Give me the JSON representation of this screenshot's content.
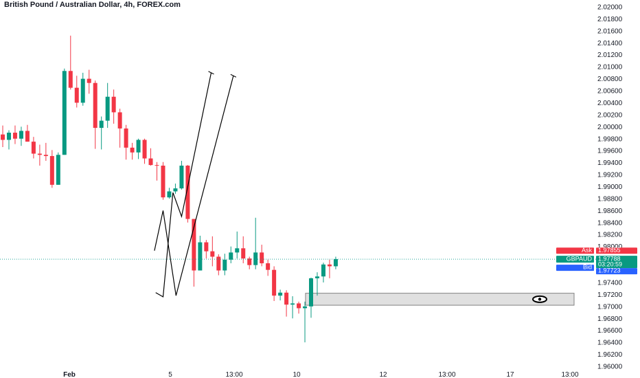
{
  "title": "British Pound / Australian Dollar, 4h, FOREX.com",
  "colors": {
    "up": "#089981",
    "down": "#f23645",
    "ask_bg": "#f23645",
    "bid_bg": "#2962ff",
    "price_bg": "#089981",
    "price_line": "#26a69a",
    "zone_fill": "#e0e0e0",
    "zone_stroke": "#808080",
    "drawing": "#000000",
    "axis_text": "#131722"
  },
  "price_labels": {
    "ask_tag": "Ask",
    "ask_value": "1.97855",
    "symbol_tag": "GBPAUD",
    "price_value": "1.97788",
    "countdown": "03:20:59",
    "bid_tag": "Bid",
    "bid_value": "1.97723"
  },
  "icons": {
    "zone_marker": "eye-icon"
  },
  "chart_data": {
    "type": "candlestick",
    "title": "British Pound / Australian Dollar, 4h, FOREX.com",
    "y_range": [
      1.96,
      2.02
    ],
    "y_ticks": [
      "2.02000",
      "2.01800",
      "2.01600",
      "2.01400",
      "2.01200",
      "2.01000",
      "2.00800",
      "2.00600",
      "2.00400",
      "2.00200",
      "2.00000",
      "1.99800",
      "1.99600",
      "1.99400",
      "1.99200",
      "1.99000",
      "1.98800",
      "1.98600",
      "1.98400",
      "1.98200",
      "1.98000",
      "1.97800",
      "1.97600",
      "1.97400",
      "1.97200",
      "1.97000",
      "1.96800",
      "1.96600",
      "1.96400",
      "1.96200",
      "1.96000"
    ],
    "x_labels": [
      "Feb",
      "5",
      "13:00",
      "10",
      "12",
      "13:00",
      "17",
      "13:00"
    ],
    "last_price": 1.97788,
    "ohlc": [
      [
        1.9987,
        2.0002,
        1.9966,
        1.9978
      ],
      [
        1.9978,
        1.9994,
        1.9962,
        1.999
      ],
      [
        1.999,
        2.0002,
        1.9971,
        1.998
      ],
      [
        1.998,
        2.0,
        1.9968,
        1.9993
      ],
      [
        1.9993,
        2.0003,
        1.9975,
        1.9975
      ],
      [
        1.9975,
        1.9983,
        1.9947,
        1.9955
      ],
      [
        1.9955,
        1.997,
        1.9935,
        1.9953
      ],
      [
        1.9953,
        1.9973,
        1.9943,
        1.9951
      ],
      [
        1.9951,
        1.9961,
        1.9898,
        1.9903
      ],
      [
        1.9903,
        1.9957,
        1.9903,
        1.9953
      ],
      [
        1.9953,
        2.0097,
        1.9953,
        2.0093
      ],
      [
        2.0093,
        2.0152,
        2.0062,
        2.0065
      ],
      [
        2.0065,
        2.0085,
        2.0032,
        2.004
      ],
      [
        2.004,
        2.009,
        2.0035,
        2.008
      ],
      [
        2.008,
        2.0095,
        2.0055,
        2.0073
      ],
      [
        2.0073,
        2.0077,
        1.9963,
        1.9998
      ],
      [
        1.9998,
        2.0017,
        1.9962,
        2.001
      ],
      [
        2.001,
        2.0073,
        1.9998,
        2.005
      ],
      [
        2.005,
        2.0062,
        2.0005,
        2.0024
      ],
      [
        2.0024,
        2.003,
        1.9965,
        1.9997
      ],
      [
        1.9997,
        2.0003,
        1.9945,
        1.9965
      ],
      [
        1.9965,
        1.9973,
        1.9945,
        1.9957
      ],
      [
        1.9957,
        1.998,
        1.9946,
        1.9978
      ],
      [
        1.9978,
        1.998,
        1.9938,
        1.9947
      ],
      [
        1.9947,
        1.9964,
        1.9935,
        1.9936
      ],
      [
        1.9936,
        1.9941,
        1.991,
        1.9935
      ],
      [
        1.9935,
        1.9941,
        1.9878,
        1.9882
      ],
      [
        1.9882,
        1.9898,
        1.988,
        1.9892
      ],
      [
        1.9892,
        1.9905,
        1.9888,
        1.9897
      ],
      [
        1.9897,
        1.9943,
        1.9895,
        1.9935
      ],
      [
        1.9935,
        1.9936,
        1.984,
        1.9846
      ],
      [
        1.9846,
        1.9846,
        1.9733,
        1.976
      ],
      [
        1.976,
        1.9818,
        1.976,
        1.9807
      ],
      [
        1.9807,
        1.9811,
        1.978,
        1.9792
      ],
      [
        1.9792,
        1.9817,
        1.9767,
        1.9783
      ],
      [
        1.9783,
        1.9787,
        1.9752,
        1.976
      ],
      [
        1.976,
        1.9788,
        1.9752,
        1.9778
      ],
      [
        1.9778,
        1.98,
        1.9772,
        1.979
      ],
      [
        1.979,
        1.9825,
        1.978,
        1.9797
      ],
      [
        1.9797,
        1.9817,
        1.9772,
        1.978
      ],
      [
        1.978,
        1.9783,
        1.9762,
        1.9769
      ],
      [
        1.9769,
        1.9848,
        1.9762,
        1.979
      ],
      [
        1.979,
        1.9803,
        1.9767,
        1.9772
      ],
      [
        1.9772,
        1.9778,
        1.9751,
        1.9761
      ],
      [
        1.9761,
        1.9767,
        1.9709,
        1.9718
      ],
      [
        1.9718,
        1.9728,
        1.971,
        1.9723
      ],
      [
        1.9723,
        1.9727,
        1.9683,
        1.9703
      ],
      [
        1.9703,
        1.9717,
        1.968,
        1.9705
      ],
      [
        1.9705,
        1.9708,
        1.9688,
        1.9697
      ],
      [
        1.9697,
        1.9708,
        1.964,
        1.97
      ],
      [
        1.97,
        1.9748,
        1.9681,
        1.9747
      ],
      [
        1.9747,
        1.9757,
        1.9718,
        1.975
      ],
      [
        1.975,
        1.9773,
        1.974,
        1.977
      ],
      [
        1.977,
        1.9778,
        1.9747,
        1.9767
      ],
      [
        1.9767,
        1.9783,
        1.9762,
        1.9779
      ]
    ],
    "demand_zone": {
      "low": 1.9702,
      "high": 1.9722
    },
    "projection_paths": [
      [
        [
          24.8,
          1.9723
        ],
        [
          26.0,
          1.9716
        ],
        [
          27.6,
          1.989
        ],
        [
          29.0,
          1.985
        ],
        [
          33.8,
          2.009
        ]
      ],
      [
        [
          24.6,
          1.9793
        ],
        [
          26.0,
          1.986
        ],
        [
          28.1,
          1.9718
        ],
        [
          37.4,
          2.0085
        ]
      ]
    ],
    "grid": false,
    "legend": "none"
  }
}
